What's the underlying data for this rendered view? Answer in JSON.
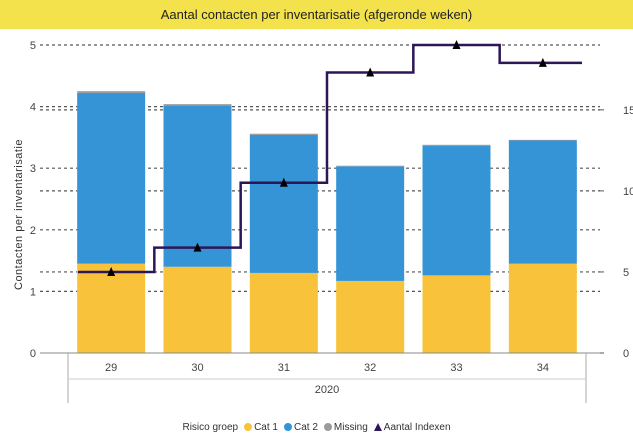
{
  "chart_data": {
    "type": "bar",
    "title": "Aantal contacten per inventarisatie (afgeronde weken)",
    "ylabel": "Contacten per inventarisatie",
    "xgroup": "2020",
    "categories": [
      "29",
      "30",
      "31",
      "32",
      "33",
      "34"
    ],
    "ylim": [
      0,
      5
    ],
    "y_ticks": [
      "0",
      "1",
      "2",
      "3",
      "4",
      "5"
    ],
    "y2lim": [
      0,
      19
    ],
    "y2_ticks": [
      "0",
      "5",
      "10",
      "15"
    ],
    "grid": true,
    "stacked": true,
    "series": [
      {
        "name": "Cat 1",
        "axis": "left",
        "color": "#f8c33a",
        "values": [
          1.45,
          1.4,
          1.3,
          1.17,
          1.26,
          1.45
        ]
      },
      {
        "name": "Cat 2",
        "axis": "left",
        "color": "#3494d6",
        "values": [
          2.77,
          2.62,
          2.24,
          1.86,
          2.1,
          2.0
        ]
      },
      {
        "name": "Missing",
        "axis": "left",
        "color": "#9b9b9b",
        "values": [
          0.03,
          0.02,
          0.02,
          0.01,
          0.02,
          0.01
        ]
      },
      {
        "name": "Aantal Indexen",
        "axis": "right",
        "type": "step-line",
        "color": "#2d1657",
        "values": [
          5,
          6.5,
          10.5,
          17.3,
          19,
          17.9
        ]
      }
    ],
    "legend": {
      "title": "Risico groep",
      "position": "bottom",
      "items": [
        {
          "label": "Cat 1",
          "color": "#f8c33a",
          "marker": "dot"
        },
        {
          "label": "Cat 2",
          "color": "#3494d6",
          "marker": "dot"
        },
        {
          "label": "Missing",
          "color": "#9b9b9b",
          "marker": "dot"
        },
        {
          "label": "Aantal Indexen",
          "color": "#2d1657",
          "marker": "triangle"
        }
      ]
    }
  }
}
